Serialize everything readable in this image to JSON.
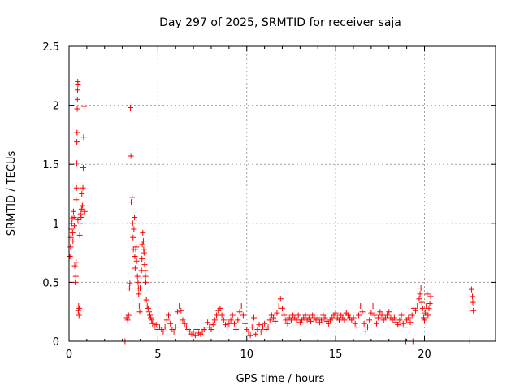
{
  "chart_data": {
    "type": "scatter",
    "title": "Day 297 of 2025, SRMTID for receiver saja",
    "xlabel": "GPS time / hours",
    "ylabel": "SRMTID / TECUs",
    "xlim": [
      0,
      24
    ],
    "ylim": [
      0,
      2.5
    ],
    "xticks": [
      0,
      5,
      10,
      15,
      20
    ],
    "xtick_labels": [
      "0",
      "5",
      "10",
      "15",
      "20"
    ],
    "yticks": [
      0,
      0.5,
      1,
      1.5,
      2,
      2.5
    ],
    "ytick_labels": [
      "0",
      "0.5",
      "1",
      "1.5",
      "2",
      "2.5"
    ],
    "grid": true,
    "marker": "plus",
    "color": "#ff0000",
    "series": [
      {
        "name": "SRMTID",
        "points": [
          [
            0.05,
            0.72
          ],
          [
            0.08,
            0.8
          ],
          [
            0.1,
            0.88
          ],
          [
            0.12,
            0.95
          ],
          [
            0.15,
            1.0
          ],
          [
            0.18,
            1.04
          ],
          [
            0.2,
            0.92
          ],
          [
            0.22,
            0.85
          ],
          [
            0.25,
            1.1
          ],
          [
            0.28,
            1.05
          ],
          [
            0.3,
            0.98
          ],
          [
            0.32,
            0.64
          ],
          [
            0.35,
            0.5
          ],
          [
            0.38,
            0.55
          ],
          [
            0.4,
            0.67
          ],
          [
            0.4,
            1.2
          ],
          [
            0.42,
            1.3
          ],
          [
            0.43,
            1.51
          ],
          [
            0.44,
            1.69
          ],
          [
            0.45,
            1.77
          ],
          [
            0.46,
            1.97
          ],
          [
            0.47,
            2.05
          ],
          [
            0.48,
            2.13
          ],
          [
            0.49,
            2.2
          ],
          [
            0.5,
            2.18
          ],
          [
            0.5,
            1.03
          ],
          [
            0.52,
            0.26
          ],
          [
            0.54,
            0.3
          ],
          [
            0.56,
            0.22
          ],
          [
            0.58,
            0.28
          ],
          [
            0.6,
            0.9
          ],
          [
            0.62,
            1.0
          ],
          [
            0.65,
            1.08
          ],
          [
            0.68,
            1.05
          ],
          [
            0.7,
            1.12
          ],
          [
            0.72,
            1.25
          ],
          [
            0.75,
            1.15
          ],
          [
            0.78,
            1.3
          ],
          [
            0.8,
            1.47
          ],
          [
            0.82,
            1.73
          ],
          [
            0.85,
            1.99
          ],
          [
            0.88,
            1.1
          ],
          [
            3.25,
            0.2
          ],
          [
            3.3,
            0.18
          ],
          [
            3.35,
            0.22
          ],
          [
            3.4,
            0.45
          ],
          [
            3.42,
            0.49
          ],
          [
            3.45,
            1.98
          ],
          [
            3.48,
            1.57
          ],
          [
            3.5,
            1.18
          ],
          [
            3.55,
            1.22
          ],
          [
            3.58,
            1.0
          ],
          [
            3.6,
            0.88
          ],
          [
            3.62,
            0.78
          ],
          [
            3.65,
            0.95
          ],
          [
            3.68,
            1.05
          ],
          [
            3.7,
            0.72
          ],
          [
            3.72,
            0.62
          ],
          [
            3.75,
            0.78
          ],
          [
            3.78,
            0.8
          ],
          [
            3.8,
            0.68
          ],
          [
            3.85,
            0.55
          ],
          [
            3.88,
            0.5
          ],
          [
            3.9,
            0.45
          ],
          [
            3.92,
            0.4
          ],
          [
            3.95,
            0.3
          ],
          [
            3.98,
            0.25
          ],
          [
            4.0,
            0.45
          ],
          [
            4.05,
            0.52
          ],
          [
            4.08,
            0.6
          ],
          [
            4.1,
            0.7
          ],
          [
            4.12,
            0.82
          ],
          [
            4.15,
            0.92
          ],
          [
            4.18,
            0.85
          ],
          [
            4.2,
            0.78
          ],
          [
            4.22,
            0.75
          ],
          [
            4.25,
            0.65
          ],
          [
            4.28,
            0.6
          ],
          [
            4.3,
            0.55
          ],
          [
            4.32,
            0.5
          ],
          [
            4.35,
            0.35
          ],
          [
            4.4,
            0.3
          ],
          [
            4.45,
            0.28
          ],
          [
            4.5,
            0.25
          ],
          [
            4.55,
            0.22
          ],
          [
            4.6,
            0.2
          ],
          [
            4.65,
            0.18
          ],
          [
            4.7,
            0.15
          ],
          [
            4.8,
            0.12
          ],
          [
            4.9,
            0.14
          ],
          [
            5.0,
            0.1
          ],
          [
            5.1,
            0.12
          ],
          [
            5.2,
            0.1
          ],
          [
            5.3,
            0.08
          ],
          [
            5.4,
            0.12
          ],
          [
            5.5,
            0.18
          ],
          [
            5.6,
            0.22
          ],
          [
            5.7,
            0.15
          ],
          [
            5.8,
            0.1
          ],
          [
            5.9,
            0.08
          ],
          [
            6.0,
            0.12
          ],
          [
            6.1,
            0.25
          ],
          [
            6.2,
            0.3
          ],
          [
            6.3,
            0.26
          ],
          [
            6.4,
            0.18
          ],
          [
            6.5,
            0.15
          ],
          [
            6.6,
            0.12
          ],
          [
            6.7,
            0.1
          ],
          [
            6.8,
            0.08
          ],
          [
            6.9,
            0.06
          ],
          [
            7.0,
            0.08
          ],
          [
            7.1,
            0.05
          ],
          [
            7.2,
            0.1
          ],
          [
            7.3,
            0.07
          ],
          [
            7.4,
            0.06
          ],
          [
            7.5,
            0.08
          ],
          [
            7.6,
            0.1
          ],
          [
            7.7,
            0.12
          ],
          [
            7.8,
            0.16
          ],
          [
            7.9,
            0.12
          ],
          [
            8.0,
            0.1
          ],
          [
            8.1,
            0.14
          ],
          [
            8.2,
            0.18
          ],
          [
            8.3,
            0.22
          ],
          [
            8.4,
            0.26
          ],
          [
            8.5,
            0.28
          ],
          [
            8.6,
            0.22
          ],
          [
            8.7,
            0.18
          ],
          [
            8.8,
            0.14
          ],
          [
            8.9,
            0.12
          ],
          [
            9.0,
            0.15
          ],
          [
            9.1,
            0.18
          ],
          [
            9.2,
            0.22
          ],
          [
            9.3,
            0.15
          ],
          [
            9.4,
            0.1
          ],
          [
            9.5,
            0.18
          ],
          [
            9.6,
            0.25
          ],
          [
            9.7,
            0.3
          ],
          [
            9.8,
            0.22
          ],
          [
            9.9,
            0.15
          ],
          [
            10.0,
            0.1
          ],
          [
            10.1,
            0.08
          ],
          [
            10.2,
            0.05
          ],
          [
            10.3,
            0.12
          ],
          [
            10.4,
            0.2
          ],
          [
            10.5,
            0.06
          ],
          [
            10.6,
            0.1
          ],
          [
            10.7,
            0.14
          ],
          [
            10.8,
            0.08
          ],
          [
            10.9,
            0.12
          ],
          [
            11.0,
            0.15
          ],
          [
            11.1,
            0.1
          ],
          [
            11.2,
            0.12
          ],
          [
            11.3,
            0.18
          ],
          [
            11.4,
            0.22
          ],
          [
            11.5,
            0.2
          ],
          [
            11.6,
            0.17
          ],
          [
            11.7,
            0.24
          ],
          [
            11.8,
            0.3
          ],
          [
            11.9,
            0.36
          ],
          [
            12.0,
            0.28
          ],
          [
            12.1,
            0.22
          ],
          [
            12.2,
            0.18
          ],
          [
            12.3,
            0.15
          ],
          [
            12.4,
            0.2
          ],
          [
            12.5,
            0.18
          ],
          [
            12.6,
            0.22
          ],
          [
            12.7,
            0.2
          ],
          [
            12.8,
            0.18
          ],
          [
            12.9,
            0.22
          ],
          [
            13.0,
            0.16
          ],
          [
            13.1,
            0.18
          ],
          [
            13.2,
            0.2
          ],
          [
            13.3,
            0.22
          ],
          [
            13.4,
            0.18
          ],
          [
            13.5,
            0.2
          ],
          [
            13.6,
            0.17
          ],
          [
            13.7,
            0.22
          ],
          [
            13.8,
            0.2
          ],
          [
            13.9,
            0.18
          ],
          [
            14.0,
            0.2
          ],
          [
            14.1,
            0.16
          ],
          [
            14.2,
            0.18
          ],
          [
            14.3,
            0.22
          ],
          [
            14.4,
            0.2
          ],
          [
            14.5,
            0.17
          ],
          [
            14.6,
            0.15
          ],
          [
            14.7,
            0.18
          ],
          [
            14.8,
            0.2
          ],
          [
            14.9,
            0.22
          ],
          [
            15.0,
            0.24
          ],
          [
            15.1,
            0.2
          ],
          [
            15.2,
            0.18
          ],
          [
            15.3,
            0.22
          ],
          [
            15.4,
            0.2
          ],
          [
            15.5,
            0.18
          ],
          [
            15.6,
            0.24
          ],
          [
            15.7,
            0.22
          ],
          [
            15.8,
            0.2
          ],
          [
            15.9,
            0.18
          ],
          [
            16.0,
            0.2
          ],
          [
            16.1,
            0.15
          ],
          [
            16.2,
            0.12
          ],
          [
            16.3,
            0.22
          ],
          [
            16.4,
            0.3
          ],
          [
            16.5,
            0.25
          ],
          [
            16.6,
            0.15
          ],
          [
            16.7,
            0.08
          ],
          [
            16.8,
            0.12
          ],
          [
            16.9,
            0.18
          ],
          [
            17.0,
            0.24
          ],
          [
            17.1,
            0.3
          ],
          [
            17.2,
            0.22
          ],
          [
            17.3,
            0.15
          ],
          [
            17.4,
            0.2
          ],
          [
            17.5,
            0.25
          ],
          [
            17.6,
            0.22
          ],
          [
            17.7,
            0.18
          ],
          [
            17.8,
            0.2
          ],
          [
            17.9,
            0.22
          ],
          [
            18.0,
            0.25
          ],
          [
            18.1,
            0.2
          ],
          [
            18.2,
            0.18
          ],
          [
            18.3,
            0.2
          ],
          [
            18.4,
            0.16
          ],
          [
            18.5,
            0.14
          ],
          [
            18.6,
            0.18
          ],
          [
            18.7,
            0.22
          ],
          [
            18.8,
            0.15
          ],
          [
            18.9,
            0.12
          ],
          [
            19.0,
            0.18
          ],
          [
            19.1,
            0.2
          ],
          [
            19.2,
            0.16
          ],
          [
            19.3,
            0.22
          ],
          [
            19.4,
            0.28
          ],
          [
            19.5,
            0.26
          ],
          [
            19.6,
            0.3
          ],
          [
            19.7,
            0.36
          ],
          [
            19.75,
            0.4
          ],
          [
            19.8,
            0.45
          ],
          [
            19.85,
            0.33
          ],
          [
            19.9,
            0.28
          ],
          [
            19.95,
            0.2
          ],
          [
            20.0,
            0.18
          ],
          [
            20.05,
            0.24
          ],
          [
            20.1,
            0.3
          ],
          [
            20.15,
            0.4
          ],
          [
            20.2,
            0.22
          ],
          [
            20.25,
            0.28
          ],
          [
            20.3,
            0.32
          ],
          [
            20.35,
            0.38
          ],
          [
            22.65,
            0.44
          ],
          [
            22.7,
            0.38
          ],
          [
            22.72,
            0.33
          ],
          [
            22.75,
            0.26
          ],
          [
            3.15,
            0.0
          ],
          [
            18.95,
            0.0
          ],
          [
            19.35,
            0.0
          ],
          [
            22.55,
            0.0
          ]
        ]
      }
    ]
  }
}
